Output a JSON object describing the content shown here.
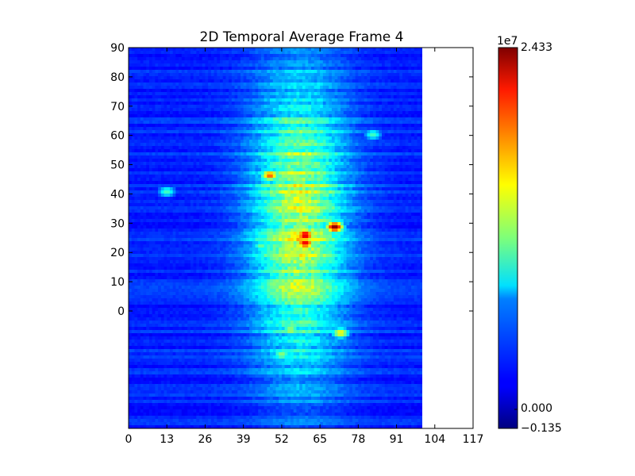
{
  "chart_data": {
    "type": "heatmap",
    "title": "2D Temporal Average Frame 4",
    "xlabel": "",
    "ylabel": "",
    "x_ticks": [
      "0",
      "13",
      "26",
      "39",
      "52",
      "65",
      "78",
      "91",
      "104",
      "117"
    ],
    "y_ticks": [
      "90",
      "80",
      "70",
      "60",
      "50",
      "40",
      "30",
      "20",
      "10",
      "0"
    ],
    "xlim": [
      0,
      117
    ],
    "data_xlim": [
      0,
      100
    ],
    "colormap": "jet",
    "colorbar": {
      "multiplier_label": "1e7",
      "min_label": "−0.135",
      "zero_label": "0.000",
      "max_label": "2.433",
      "vmin": -0.135,
      "vmax": 2.433
    },
    "hotspots": [
      {
        "x": 70,
        "y": 34,
        "value": 2.43
      },
      {
        "x": 60,
        "y": 31,
        "value": 2.3
      },
      {
        "x": 60,
        "y": 28,
        "value": 2.2
      },
      {
        "x": 48,
        "y": 53,
        "value": 1.9
      },
      {
        "x": 57,
        "y": 44,
        "value": 1.6
      },
      {
        "x": 72,
        "y": -5,
        "value": 1.5
      },
      {
        "x": 55,
        "y": -4,
        "value": 1.3
      },
      {
        "x": 52,
        "y": -13,
        "value": 1.2
      },
      {
        "x": 62,
        "y": 66,
        "value": 1.1
      },
      {
        "x": 13,
        "y": 47,
        "value": 1.0
      },
      {
        "x": 83,
        "y": 68,
        "value": 1.0
      },
      {
        "x": 45,
        "y": 27,
        "value": 1.1
      }
    ]
  }
}
